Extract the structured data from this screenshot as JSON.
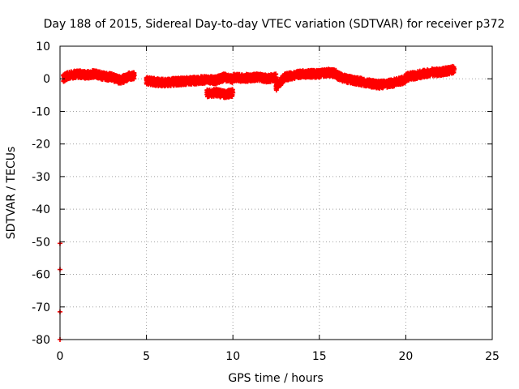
{
  "chart_data": {
    "type": "scatter",
    "title": "Day 188 of 2015, Sidereal Day-to-day VTEC variation (SDTVAR) for receiver p372",
    "xlabel": "GPS time / hours",
    "ylabel": "SDTVAR / TECUs",
    "xlim": [
      0,
      25
    ],
    "ylim": [
      -80,
      10
    ],
    "xticks": [
      0,
      5,
      10,
      15,
      20,
      25
    ],
    "xtick_labels": [
      "0",
      "5",
      "10",
      "15",
      "20",
      "25"
    ],
    "yticks": [
      10,
      0,
      -10,
      -20,
      -30,
      -40,
      -50,
      -60,
      -70,
      -80
    ],
    "ytick_labels": [
      "10",
      "0",
      "-10",
      "-20",
      "-30",
      "-40",
      "-50",
      "-60",
      "-70",
      "-80"
    ],
    "grid": true,
    "grid_style": "dotted",
    "series": [
      {
        "name": "SDTVAR",
        "color": "#ff0000",
        "marker": "plus",
        "segments": [
          {
            "x": [
              0.2,
              0.5,
              1.0,
              1.5,
              2.0,
              2.5,
              3.0,
              3.5,
              4.0,
              4.3
            ],
            "y": [
              0.2,
              1.0,
              1.5,
              1.2,
              1.5,
              0.8,
              0.5,
              -0.5,
              0.8,
              1.0
            ]
          },
          {
            "x": [
              5.0,
              5.5,
              6.0,
              7.0,
              8.0,
              8.5,
              9.0,
              9.5,
              10.0
            ],
            "y": [
              -0.5,
              -1.0,
              -1.2,
              -0.8,
              -0.5,
              -0.2,
              -0.5,
              0.5,
              -0.2
            ]
          },
          {
            "x": [
              8.5,
              9.0,
              9.5,
              10.0
            ],
            "y": [
              -4.5,
              -4.2,
              -4.8,
              -4.3
            ]
          },
          {
            "x": [
              10.0,
              10.5,
              11.0,
              11.5,
              12.0,
              12.5
            ],
            "y": [
              0.5,
              0.2,
              0.3,
              0.5,
              0.0,
              0.5
            ]
          },
          {
            "x": [
              12.5,
              13.0,
              13.5,
              14.0,
              14.5,
              15.0,
              15.5,
              16.0
            ],
            "y": [
              -2.5,
              0.5,
              1.0,
              1.5,
              1.5,
              1.5,
              2.0,
              1.5
            ]
          },
          {
            "x": [
              16.0,
              16.5,
              17.0,
              17.5,
              18.0,
              18.5,
              19.0,
              19.5,
              20.0
            ],
            "y": [
              1.0,
              0.0,
              -0.5,
              -1.0,
              -1.5,
              -1.8,
              -1.5,
              -1.0,
              -0.2
            ]
          },
          {
            "x": [
              20.0,
              20.5,
              21.0,
              21.5,
              22.0,
              22.5,
              22.8
            ],
            "y": [
              0.5,
              1.0,
              1.5,
              2.0,
              2.0,
              2.5,
              3.0
            ]
          }
        ],
        "outliers": {
          "x": [
            0,
            0,
            0,
            0
          ],
          "y": [
            -50.5,
            -58.5,
            -71.5,
            -80
          ]
        }
      }
    ]
  }
}
